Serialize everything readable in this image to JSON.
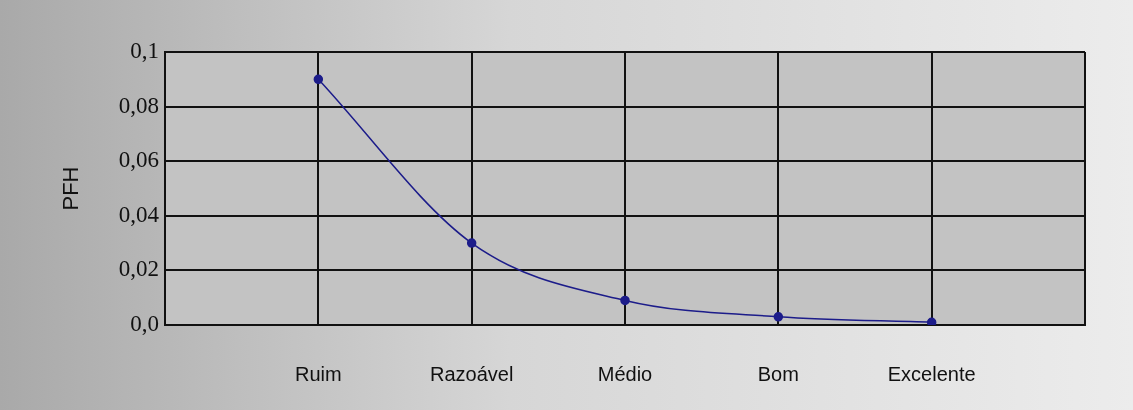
{
  "chart_data": {
    "type": "line",
    "ylabel": "PFH",
    "categories": [
      null,
      "Ruim",
      "Razoável",
      "Médio",
      "Bom",
      "Excelente",
      null
    ],
    "series": [
      {
        "color": "#1c1c8a",
        "values": [
          null,
          0.09,
          0.03,
          0.009,
          0.003,
          0.001,
          null
        ]
      }
    ],
    "ylim": [
      0,
      0.1
    ],
    "yticks": [
      {
        "value": 0,
        "label": "0,0"
      },
      {
        "value": 0.02,
        "label": "0,02"
      },
      {
        "value": 0.04,
        "label": "0,04"
      },
      {
        "value": 0.06,
        "label": "0,06"
      },
      {
        "value": 0.08,
        "label": "0,08"
      },
      {
        "value": 0.1,
        "label": "0,1"
      }
    ],
    "grid": true,
    "marker": "circle",
    "legend": false
  }
}
